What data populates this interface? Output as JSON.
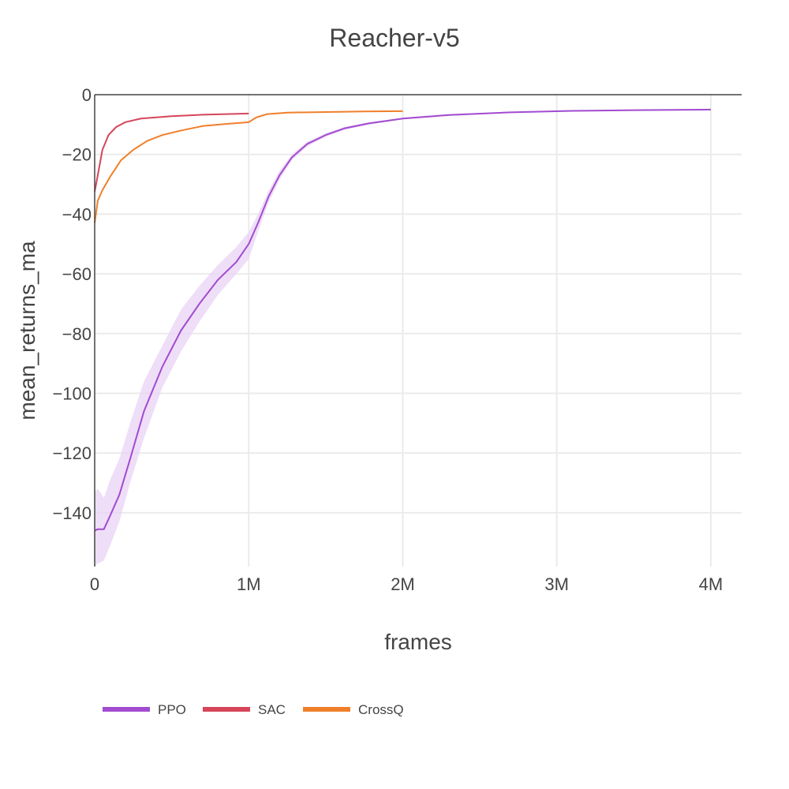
{
  "chart_data": {
    "type": "line",
    "title": "Reacher-v5",
    "xlabel": "frames",
    "ylabel": "mean_returns_ma",
    "xlim": [
      0,
      4200000
    ],
    "ylim": [
      -158,
      0
    ],
    "x_ticks": [
      {
        "value": 0,
        "label": "0"
      },
      {
        "value": 1000000,
        "label": "1M"
      },
      {
        "value": 2000000,
        "label": "2M"
      },
      {
        "value": 3000000,
        "label": "3M"
      },
      {
        "value": 4000000,
        "label": "4M"
      }
    ],
    "y_ticks": [
      {
        "value": 0,
        "label": "0"
      },
      {
        "value": -20,
        "label": "−20"
      },
      {
        "value": -40,
        "label": "−40"
      },
      {
        "value": -60,
        "label": "−60"
      },
      {
        "value": -80,
        "label": "−80"
      },
      {
        "value": -100,
        "label": "−100"
      },
      {
        "value": -120,
        "label": "−120"
      },
      {
        "value": -140,
        "label": "−140"
      }
    ],
    "grid": true,
    "legend_position": "bottom-left",
    "series": [
      {
        "name": "PPO",
        "color": "#a24bd0",
        "band_color": "#e8d3f4",
        "x": [
          0,
          20000,
          60000,
          100000,
          160000,
          230000,
          320000,
          440000,
          560000,
          680000,
          800000,
          920000,
          1000000,
          1060000,
          1130000,
          1200000,
          1280000,
          1380000,
          1500000,
          1620000,
          1780000,
          2000000,
          2300000,
          2700000,
          3100000,
          3500000,
          4000000
        ],
        "y": [
          -146,
          -145.5,
          -145.5,
          -141,
          -134,
          -122,
          -106,
          -91,
          -79,
          -70,
          -62,
          -56,
          -50,
          -43,
          -34,
          -27,
          -21,
          -16.5,
          -13.5,
          -11.3,
          -9.6,
          -8,
          -6.8,
          -5.9,
          -5.4,
          -5.2,
          -5
        ],
        "band_upper": [
          -133,
          -132,
          -135,
          -129,
          -122,
          -110,
          -96,
          -84,
          -72,
          -64,
          -57,
          -51,
          -46,
          -40,
          -32,
          -25.5,
          -20,
          -15.7,
          -12.9,
          -10.8,
          -9.2,
          -7.7,
          -6.5,
          -5.7,
          -5.2,
          -5,
          -4.8
        ],
        "band_lower": [
          -158,
          -157,
          -156,
          -151,
          -143,
          -130,
          -115,
          -98,
          -86,
          -76,
          -67,
          -60,
          -55,
          -46,
          -36,
          -28.5,
          -22,
          -17.3,
          -14.1,
          -11.8,
          -10,
          -8.3,
          -7.1,
          -6.1,
          -5.6,
          -5.4,
          -5.2
        ]
      },
      {
        "name": "SAC",
        "color": "#d6455a",
        "x": [
          0,
          20000,
          50000,
          90000,
          140000,
          200000,
          300000,
          500000,
          700000,
          1000000
        ],
        "y": [
          -32.5,
          -27,
          -18.5,
          -13.5,
          -10.8,
          -9.2,
          -8,
          -7.2,
          -6.7,
          -6.3
        ]
      },
      {
        "name": "CrossQ",
        "color": "#f07f2a",
        "x": [
          0,
          20000,
          50000,
          100000,
          170000,
          250000,
          340000,
          440000,
          560000,
          700000,
          850000,
          1000000,
          1050000,
          1120000,
          1250000,
          1500000,
          1750000,
          2000000
        ],
        "y": [
          -43,
          -35.5,
          -32,
          -27.5,
          -22,
          -18.5,
          -15.5,
          -13.5,
          -12,
          -10.5,
          -9.8,
          -9.2,
          -7.6,
          -6.5,
          -6,
          -5.8,
          -5.6,
          -5.5
        ]
      }
    ]
  }
}
